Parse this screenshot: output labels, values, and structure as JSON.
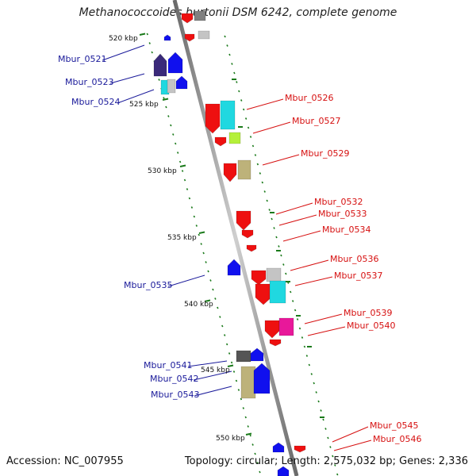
{
  "title": "Methanococcoides burtonii DSM 6242, complete genome",
  "accession": "Accession: NC_007955",
  "stats": "Topology: circular; Length: 2,575,032 bp; Genes: 2,336",
  "kbp_labels": [
    "520 kbp",
    "525 kbp",
    "530 kbp",
    "535 kbp",
    "540 kbp",
    "545 kbp",
    "550 kbp"
  ],
  "left_labels": [
    "Mbur_0521",
    "Mbur_0523",
    "Mbur_0524",
    "Mbur_0535",
    "Mbur_0541",
    "Mbur_0542",
    "Mbur_0543"
  ],
  "right_labels": [
    "Mbur_0526",
    "Mbur_0527",
    "Mbur_0529",
    "Mbur_0532",
    "Mbur_0533",
    "Mbur_0534",
    "Mbur_0536",
    "Mbur_0537",
    "Mbur_0539",
    "Mbur_0540",
    "Mbur_0545",
    "Mbur_0546"
  ],
  "colors": {
    "backbone": "#8a8a8a",
    "tick": "#1a7a1a",
    "left_label": "#1a1a9a",
    "right_label": "#d61010",
    "red": "#ee1010",
    "blue": "#1010ee",
    "navy": "#3a2a7a",
    "cyan": "#20d8e0",
    "lightgray": "#c4c4c4",
    "gray": "#808080",
    "darkgray": "#555555",
    "khaki": "#bdb27a",
    "lime": "#b5f03a",
    "magenta": "#e8189a"
  }
}
